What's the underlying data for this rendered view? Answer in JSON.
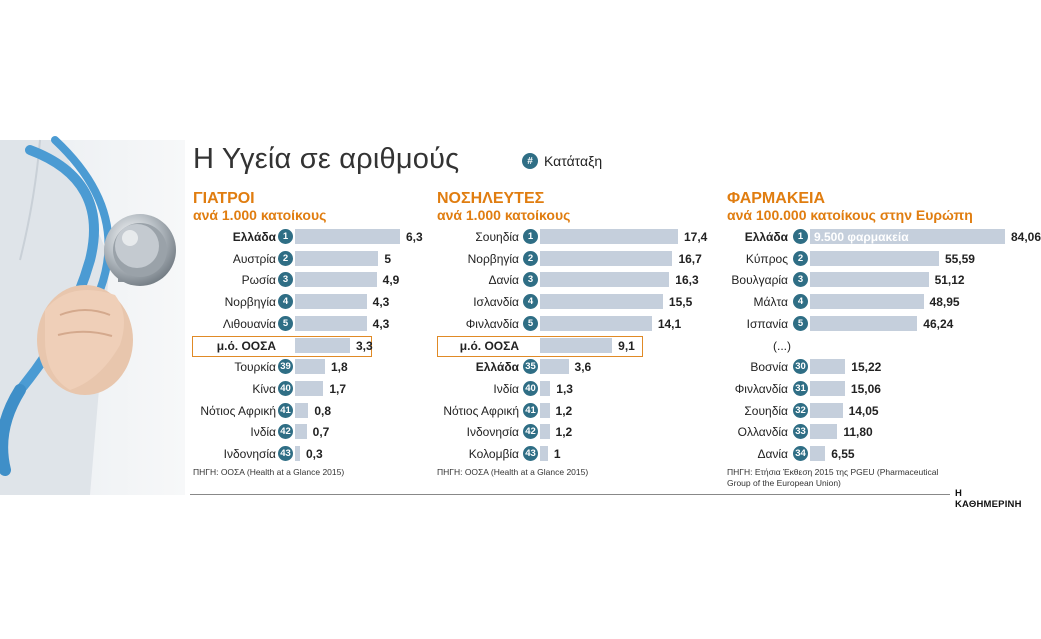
{
  "title": "Η Υγεία σε αριθμούς",
  "rank_legend": {
    "symbol": "#",
    "label": "Κατάταξη"
  },
  "colors": {
    "bar": "#c5cfdc",
    "badge": "#2f6e85",
    "heading": "#e07d10",
    "highlight_box": "#e08a26"
  },
  "brand": "Η ΚΑΘΗΜΕΡΙΝΗ",
  "chart_data": [
    {
      "type": "bar",
      "title": "ΓΙΑΤΡΟΙ",
      "subtitle": "ανά 1.000 κατοίκους",
      "scale_max": 6.3,
      "rows": [
        {
          "label": "Ελλάδα",
          "rank": "1",
          "value": 6.3,
          "display": "6,3",
          "bold": true
        },
        {
          "label": "Αυστρία",
          "rank": "2",
          "value": 5,
          "display": "5"
        },
        {
          "label": "Ρωσία",
          "rank": "3",
          "value": 4.9,
          "display": "4,9"
        },
        {
          "label": "Νορβηγία",
          "rank": "4",
          "value": 4.3,
          "display": "4,3"
        },
        {
          "label": "Λιθουανία",
          "rank": "5",
          "value": 4.3,
          "display": "4,3"
        },
        {
          "label": "μ.ό. ΟΟΣΑ",
          "rank": "",
          "value": 3.3,
          "display": "3,3",
          "oecd": true
        },
        {
          "label": "Τουρκία",
          "rank": "39",
          "value": 1.8,
          "display": "1,8"
        },
        {
          "label": "Κίνα",
          "rank": "40",
          "value": 1.7,
          "display": "1,7"
        },
        {
          "label": "Νότιος Αφρική",
          "rank": "41",
          "value": 0.8,
          "display": "0,8"
        },
        {
          "label": "Ινδία",
          "rank": "42",
          "value": 0.7,
          "display": "0,7"
        },
        {
          "label": "Ινδονησία",
          "rank": "43",
          "value": 0.3,
          "display": "0,3"
        }
      ],
      "source": [
        "ΠΗΓΗ: ΟΟΣΑ (Health at a Glance 2015)"
      ]
    },
    {
      "type": "bar",
      "title": "ΝΟΣΗΛΕΥΤΕΣ",
      "subtitle": "ανά 1.000 κατοίκους",
      "scale_max": 17.4,
      "rows": [
        {
          "label": "Σουηδία",
          "rank": "1",
          "value": 17.4,
          "display": "17,4"
        },
        {
          "label": "Νορβηγία",
          "rank": "2",
          "value": 16.7,
          "display": "16,7"
        },
        {
          "label": "Δανία",
          "rank": "3",
          "value": 16.3,
          "display": "16,3"
        },
        {
          "label": "Ισλανδία",
          "rank": "4",
          "value": 15.5,
          "display": "15,5"
        },
        {
          "label": "Φινλανδία",
          "rank": "5",
          "value": 14.1,
          "display": "14,1"
        },
        {
          "label": "μ.ό. ΟΟΣΑ",
          "rank": "",
          "value": 9.1,
          "display": "9,1",
          "oecd": true
        },
        {
          "label": "Ελλάδα",
          "rank": "35",
          "value": 3.6,
          "display": "3,6",
          "bold": true
        },
        {
          "label": "Ινδία",
          "rank": "40",
          "value": 1.3,
          "display": "1,3"
        },
        {
          "label": "Νότιος Αφρική",
          "rank": "41",
          "value": 1.2,
          "display": "1,2"
        },
        {
          "label": "Ινδονησία",
          "rank": "42",
          "value": 1.2,
          "display": "1,2"
        },
        {
          "label": "Κολομβία",
          "rank": "43",
          "value": 1,
          "display": "1"
        }
      ],
      "source": [
        "ΠΗΓΗ: ΟΟΣΑ (Health at a Glance 2015)"
      ]
    },
    {
      "type": "bar",
      "title": "ΦΑΡΜΑΚΕΙΑ",
      "subtitle": "ανά 100.000 κατοίκους στην Ευρώπη",
      "scale_max": 84.06,
      "rows": [
        {
          "label": "Ελλάδα",
          "rank": "1",
          "value": 84.06,
          "display": "84,06",
          "bold": true,
          "inbar": "9.500 φαρμακεία"
        },
        {
          "label": "Κύπρος",
          "rank": "2",
          "value": 55.59,
          "display": "55,59"
        },
        {
          "label": "Βουλγαρία",
          "rank": "3",
          "value": 51.12,
          "display": "51,12"
        },
        {
          "label": "Μάλτα",
          "rank": "4",
          "value": 48.95,
          "display": "48,95"
        },
        {
          "label": "Ισπανία",
          "rank": "5",
          "value": 46.24,
          "display": "46,24"
        },
        {
          "label": "(...)",
          "rank": "",
          "value": null,
          "display": "",
          "gap": true
        },
        {
          "label": "Βοσνία",
          "rank": "30",
          "value": 15.22,
          "display": "15,22"
        },
        {
          "label": "Φινλανδία",
          "rank": "31",
          "value": 15.06,
          "display": "15,06"
        },
        {
          "label": "Σουηδία",
          "rank": "32",
          "value": 14.05,
          "display": "14,05"
        },
        {
          "label": "Ολλανδία",
          "rank": "33",
          "value": 11.8,
          "display": "11,80"
        },
        {
          "label": "Δανία",
          "rank": "34",
          "value": 6.55,
          "display": "6,55"
        }
      ],
      "source": [
        "ΠΗΓΗ: Ετήσια Έκθεση 2015 της PGEU (Pharmaceutical",
        "Group of the European Union)"
      ]
    }
  ]
}
